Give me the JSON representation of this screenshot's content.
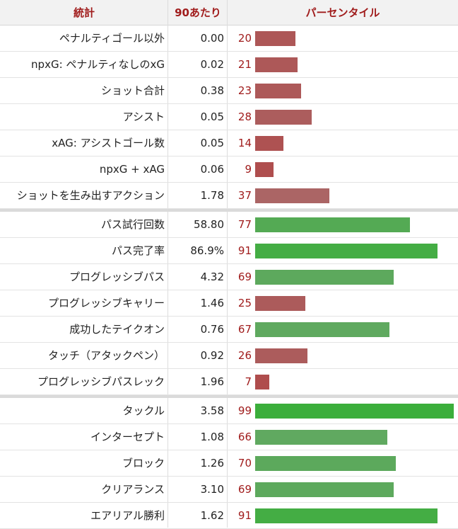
{
  "header": {
    "stat": "統計",
    "per90": "90あたり",
    "percentile": "パーセンタイル"
  },
  "colors": {
    "header_text": "#a01c1c",
    "low": "#b04747",
    "high": "#3aae3a"
  },
  "chart_data": {
    "type": "table",
    "columns": [
      "統計",
      "90あたり",
      "パーセンタイル"
    ],
    "percentile_range": [
      0,
      100
    ],
    "groups": [
      [
        {
          "stat": "ペナルティゴール以外",
          "per90": "0.00",
          "percentile": 20
        },
        {
          "stat": "npxG: ペナルティなしのxG",
          "per90": "0.02",
          "percentile": 21
        },
        {
          "stat": "ショット合計",
          "per90": "0.38",
          "percentile": 23
        },
        {
          "stat": "アシスト",
          "per90": "0.05",
          "percentile": 28
        },
        {
          "stat": "xAG: アシストゴール数",
          "per90": "0.05",
          "percentile": 14
        },
        {
          "stat": "npxG + xAG",
          "per90": "0.06",
          "percentile": 9
        },
        {
          "stat": "ショットを生み出すアクション",
          "per90": "1.78",
          "percentile": 37
        }
      ],
      [
        {
          "stat": "パス試行回数",
          "per90": "58.80",
          "percentile": 77
        },
        {
          "stat": "パス完了率",
          "per90": "86.9%",
          "percentile": 91
        },
        {
          "stat": "プログレッシブパス",
          "per90": "4.32",
          "percentile": 69
        },
        {
          "stat": "プログレッシブキャリー",
          "per90": "1.46",
          "percentile": 25
        },
        {
          "stat": "成功したテイクオン",
          "per90": "0.76",
          "percentile": 67
        },
        {
          "stat": "タッチ（アタックペン）",
          "per90": "0.92",
          "percentile": 26
        },
        {
          "stat": "プログレッシブパスレック",
          "per90": "1.96",
          "percentile": 7
        }
      ],
      [
        {
          "stat": "タックル",
          "per90": "3.58",
          "percentile": 99
        },
        {
          "stat": "インターセプト",
          "per90": "1.08",
          "percentile": 66
        },
        {
          "stat": "ブロック",
          "per90": "1.26",
          "percentile": 70
        },
        {
          "stat": "クリアランス",
          "per90": "3.10",
          "percentile": 69
        },
        {
          "stat": "エアリアル勝利",
          "per90": "1.62",
          "percentile": 91
        }
      ]
    ]
  }
}
